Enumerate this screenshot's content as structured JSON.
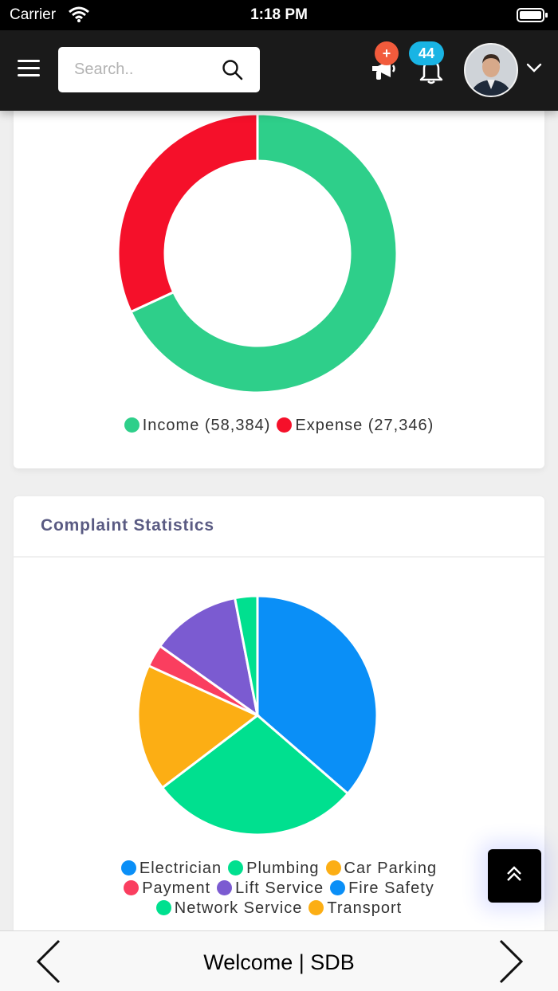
{
  "status_bar": {
    "carrier": "Carrier",
    "time": "1:18 PM"
  },
  "header": {
    "search": {
      "placeholder": "Search..",
      "value": ""
    },
    "megaphone_badge": "+",
    "notification_count": "44",
    "icons": [
      "menu-icon",
      "search-icon",
      "megaphone-icon",
      "bell-icon",
      "chevron-down-icon"
    ]
  },
  "chart_data": [
    {
      "type": "pie",
      "variant": "donut",
      "title": "",
      "categories": [
        "Income",
        "Expense"
      ],
      "values": [
        58384,
        27346
      ],
      "colors": [
        "#2ecf8a",
        "#f5102a"
      ],
      "legend_labels": [
        "Income (58,384)",
        "Expense (27,346)"
      ],
      "legend_position": "bottom"
    },
    {
      "type": "pie",
      "title": "Complaint Statistics",
      "categories": [
        "Electrician",
        "Plumbing",
        "Car Parking",
        "Payment",
        "Lift Service",
        "Fire Safety",
        "Network Service",
        "Transport"
      ],
      "values": [
        36,
        28,
        17,
        3,
        12,
        0,
        3,
        0
      ],
      "colors": [
        "#0a8ff7",
        "#00e08f",
        "#fcae14",
        "#fa3e5f",
        "#7b5bd1",
        "#0a8ff7",
        "#00e08f",
        "#fcae14"
      ],
      "legend_position": "bottom"
    }
  ],
  "bottom_nav": {
    "title": "Welcome | SDB",
    "icons": [
      "chevron-left-icon",
      "chevron-right-icon"
    ]
  }
}
